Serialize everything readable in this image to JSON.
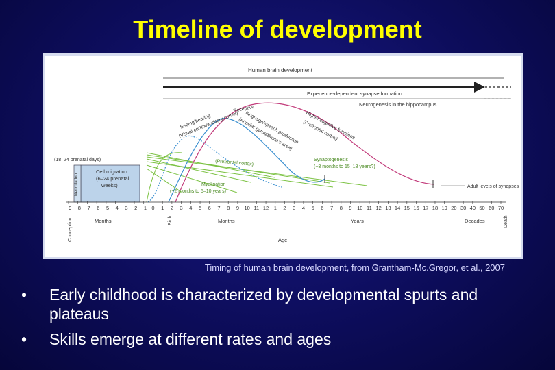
{
  "slide": {
    "title": "Timeline of development",
    "caption": "Timing of human brain development, from Grantham-Mc.Gregor, et al., 2007",
    "bullet_symbol": "•",
    "bullets": [
      "Early childhood is characterized by developmental spurts and plateaus",
      "Skills emerge at different rates and ages"
    ]
  },
  "figure": {
    "header": "Human brain development",
    "arrow_labels": [
      "Experience-dependent synapse formation",
      "Neurogenesis in the hippocampus"
    ],
    "curve_labels": {
      "seeing_hearing": [
        "Seeing/hearing",
        "(Visual cortex/auditory cortex)"
      ],
      "receptive_language": [
        "Receptive",
        "language/speech production",
        "(Angular gyrus/Broca's area)"
      ],
      "higher_cognitive": [
        "Higher cognitive functions",
        "(Prefrontal cortex)"
      ],
      "prefrontal": "(Prefrontal cortex)",
      "synaptogenesis": [
        "Synaptogenesis",
        "(−3 months to 15–18 years?)"
      ],
      "myelination": [
        "Myelination",
        "(−2 months to 5–10 years)"
      ],
      "adult_levels": "Adult levels of synapses"
    },
    "prenatal_labels": {
      "neurulation": "Neurulation",
      "prenatal_days": "(18–24 prenatal days)",
      "cell_migration": [
        "Cell migration",
        "(6–24 prenatal",
        "weeks)"
      ]
    },
    "ticks": [
      "−9",
      "−8",
      "−7",
      "−6",
      "−5",
      "−4",
      "−3",
      "−2",
      "−1",
      "0",
      "1",
      "2",
      "3",
      "4",
      "5",
      "6",
      "7",
      "8",
      "9",
      "10",
      "11",
      "12",
      "1",
      "2",
      "3",
      "4",
      "5",
      "6",
      "7",
      "8",
      "9",
      "10",
      "11",
      "12",
      "13",
      "14",
      "15",
      "16",
      "17",
      "18",
      "19",
      "20",
      "30",
      "40",
      "50",
      "60",
      "70"
    ],
    "units": {
      "conception": "Conception",
      "months_prenatal": "Months",
      "birth": "Birth",
      "months": "Months",
      "years": "Years",
      "decades": "Decades",
      "death": "Death"
    },
    "axis_title": "Age",
    "colors": {
      "green": "#7cc243",
      "blue": "#3a8fd0",
      "pink": "#c23a7a",
      "gray": "#555555",
      "box_fill": "#bcd3ea"
    }
  }
}
